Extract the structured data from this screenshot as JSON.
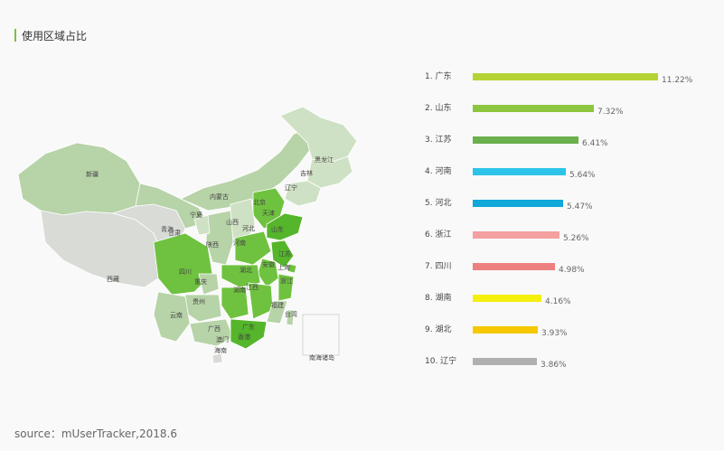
{
  "header": {
    "title": "使用区域占比"
  },
  "source": "source：mUserTracker,2018.6",
  "colors": {
    "accent": "#7ac142",
    "map_base": "#b7d3a8",
    "map_light": "#cfe1c4",
    "map_gray": "#d8dbd6",
    "map_highlight": "#6fc23f",
    "map_highlight_dark": "#55b52b"
  },
  "map": {
    "labels": [
      "新疆",
      "西藏",
      "青海",
      "甘肃",
      "内蒙古",
      "黑龙江",
      "吉林",
      "辽宁",
      "宁夏",
      "山西",
      "河北",
      "北京",
      "天津",
      "陕西",
      "河南",
      "山东",
      "江苏",
      "安徽",
      "上海",
      "四川",
      "重庆",
      "湖北",
      "浙江",
      "湖南",
      "江西",
      "贵州",
      "云南",
      "广西",
      "广东",
      "福建",
      "台湾",
      "香港",
      "澳门",
      "海南",
      "南海诸岛"
    ]
  },
  "chart_data": {
    "type": "bar",
    "orientation": "horizontal",
    "categories": [
      "1. 广东",
      "2. 山东",
      "3. 江苏",
      "4. 河南",
      "5. 河北",
      "6. 浙江",
      "7. 四川",
      "8. 湖南",
      "9. 湖北",
      "10. 辽宁"
    ],
    "values": [
      11.22,
      7.32,
      6.41,
      5.64,
      5.47,
      5.26,
      4.98,
      4.16,
      3.93,
      3.86
    ],
    "value_labels": [
      "11.22%",
      "7.32%",
      "6.41%",
      "5.64%",
      "5.47%",
      "5.26%",
      "4.98%",
      "4.16%",
      "3.93%",
      "3.86%"
    ],
    "colors": [
      "#b5d334",
      "#8cc63f",
      "#6ab04c",
      "#2bc4e8",
      "#0fa8d8",
      "#f4a0a0",
      "#ee8080",
      "#f5ef0c",
      "#f5c800",
      "#b0b0b0"
    ],
    "unit": "%"
  }
}
